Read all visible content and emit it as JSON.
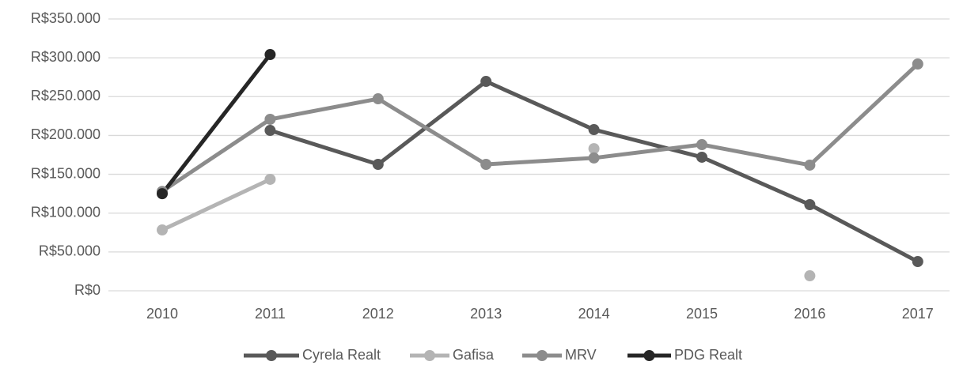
{
  "chart_data": {
    "type": "line",
    "categories": [
      "2010",
      "2011",
      "2012",
      "2013",
      "2014",
      "2015",
      "2016",
      "2017"
    ],
    "series": [
      {
        "name": "Cyrela Realt",
        "color": "#595959",
        "values": [
          null,
          206500,
          162800,
          269600,
          207500,
          172000,
          110900,
          37600
        ]
      },
      {
        "name": "Gafisa",
        "color": "#b4b4b4",
        "values": [
          78300,
          143500,
          null,
          null,
          183000,
          null,
          19300,
          null
        ]
      },
      {
        "name": "MRV",
        "color": "#8c8c8c",
        "values": [
          128000,
          220800,
          247200,
          162800,
          171000,
          188200,
          161800,
          292000
        ]
      },
      {
        "name": "PDG Realt",
        "color": "#262626",
        "values": [
          125000,
          304200,
          null,
          null,
          null,
          null,
          null,
          null
        ]
      }
    ],
    "ylim": [
      0,
      350000
    ],
    "yticks": [
      {
        "value": 0,
        "label": "R$0"
      },
      {
        "value": 50000,
        "label": "R$50.000"
      },
      {
        "value": 100000,
        "label": "R$100.000"
      },
      {
        "value": 150000,
        "label": "R$150.000"
      },
      {
        "value": 200000,
        "label": "R$200.000"
      },
      {
        "value": 250000,
        "label": "R$250.000"
      },
      {
        "value": 300000,
        "label": "R$300.000"
      },
      {
        "value": 350000,
        "label": "R$350.000"
      }
    ],
    "grid": true,
    "legend": "bottom"
  }
}
